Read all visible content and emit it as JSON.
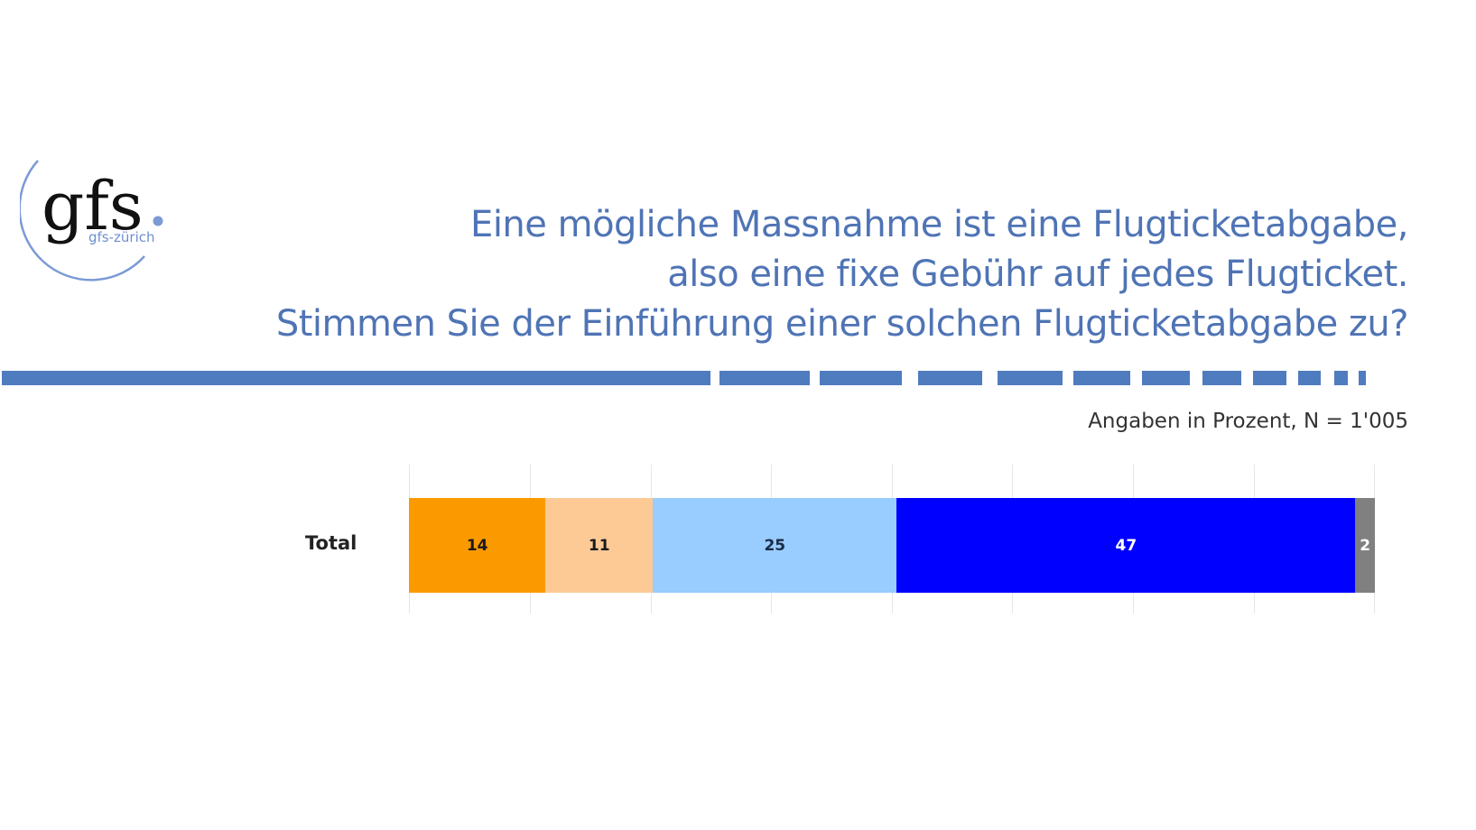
{
  "logo": {
    "mark": "gfs.",
    "mark_text": "gfs",
    "sub": "gfs-zürich",
    "accent_color": "#7b9ad6"
  },
  "title": {
    "lines": [
      "Eine mögliche Massnahme ist eine Flugticketabgabe,",
      "also eine fixe Gebühr auf jedes Flugticket.",
      "Stimmen Sie der Einführung einer solchen Flugticketabgabe zu?"
    ],
    "color": "#4f74b5"
  },
  "note": "Angaben in Prozent, N = 1'005",
  "chart_data": {
    "type": "bar",
    "orientation": "horizontal-stacked",
    "title": "Stimmen Sie der Einführung einer solchen Flugticketabgabe zu?",
    "subtitle": "Angaben in Prozent, N = 1'005",
    "categories": [
      "Total"
    ],
    "series": [
      {
        "name": "segment-1",
        "values": [
          14
        ],
        "color": "#fb9a00",
        "label_color": "#1a1a1a"
      },
      {
        "name": "segment-2",
        "values": [
          11
        ],
        "color": "#fdca96",
        "label_color": "#1a1a1a"
      },
      {
        "name": "segment-3",
        "values": [
          25
        ],
        "color": "#99ccff",
        "label_color": "#1a2a44"
      },
      {
        "name": "segment-4",
        "values": [
          47
        ],
        "color": "#0000ff",
        "label_color": "#ffffff"
      },
      {
        "name": "segment-5",
        "values": [
          2
        ],
        "color": "#808080",
        "label_color": "#ffffff"
      }
    ],
    "xlim": [
      0,
      100
    ],
    "grid": true,
    "gridlines": 9,
    "legend": "none"
  }
}
